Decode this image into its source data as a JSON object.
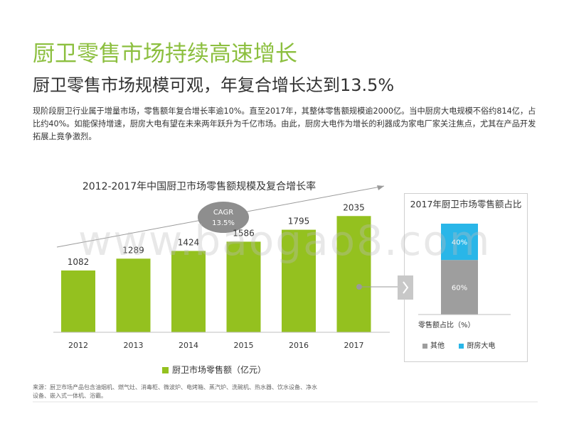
{
  "header": {
    "title": "厨卫零售市场持续高速增长",
    "subtitle": "厨卫零售市场规模可观，年复合增长达到13.5%"
  },
  "body_text": "现阶段厨卫行业属于增量市场，零售额年复合增长率逾10%。直至2017年，其整体零售额规模逾2000亿。当中厨房大电规模不俗约814亿，占比约40%。如能保持增速，厨房大电有望在未来两年跃升为千亿市场。由此，厨房大电作为增长的利器成为家电厂家关注焦点，尤其在产品开发拓展上竟争激烈。",
  "cagr_bubble": {
    "label": "CAGR",
    "value": "13.5%"
  },
  "watermark": "www.baogao8.com",
  "source": "来源：厨卫市场产品包含油烟机、燃气灶、消毒柜、微波炉、电烤箱、蒸汽炉、洗碗机、热水器、饮水设备、净水设备、嵌入式一体机、浴霸。",
  "colors": {
    "title": "#8cbf3f",
    "bar": "#94c11f",
    "other": "#9e9e9e",
    "kitchen": "#29b6e8",
    "arrow_btn": "#c8c8c8"
  },
  "icons": {
    "expand": "chevron-right-icon"
  },
  "chart_data": [
    {
      "type": "bar",
      "title": "2012-2017年中国厨卫市场零售额规模及复合增长率",
      "categories": [
        "2012",
        "2013",
        "2014",
        "2015",
        "2016",
        "2017"
      ],
      "series": [
        {
          "name": "厨卫市场零售额（亿元）",
          "values": [
            1082,
            1289,
            1424,
            1586,
            1795,
            2035
          ]
        }
      ],
      "data_labels": [
        "1082",
        "1289",
        "1424",
        "1586",
        "1795",
        "2035"
      ],
      "ylim": [
        0,
        2200
      ],
      "grid": false,
      "legend": "bottom"
    },
    {
      "type": "bar",
      "title": "2017年厨卫市场零售额占比",
      "xlabel": "零售额占比（%）",
      "categories": [
        "零售额占比（%）"
      ],
      "series": [
        {
          "name": "其他",
          "values": [
            60
          ]
        },
        {
          "name": "厨房大电",
          "values": [
            40
          ]
        }
      ],
      "data_labels": [
        "60%",
        "40%"
      ],
      "ylim": [
        0,
        100
      ],
      "stacked": true,
      "legend": "bottom"
    }
  ]
}
